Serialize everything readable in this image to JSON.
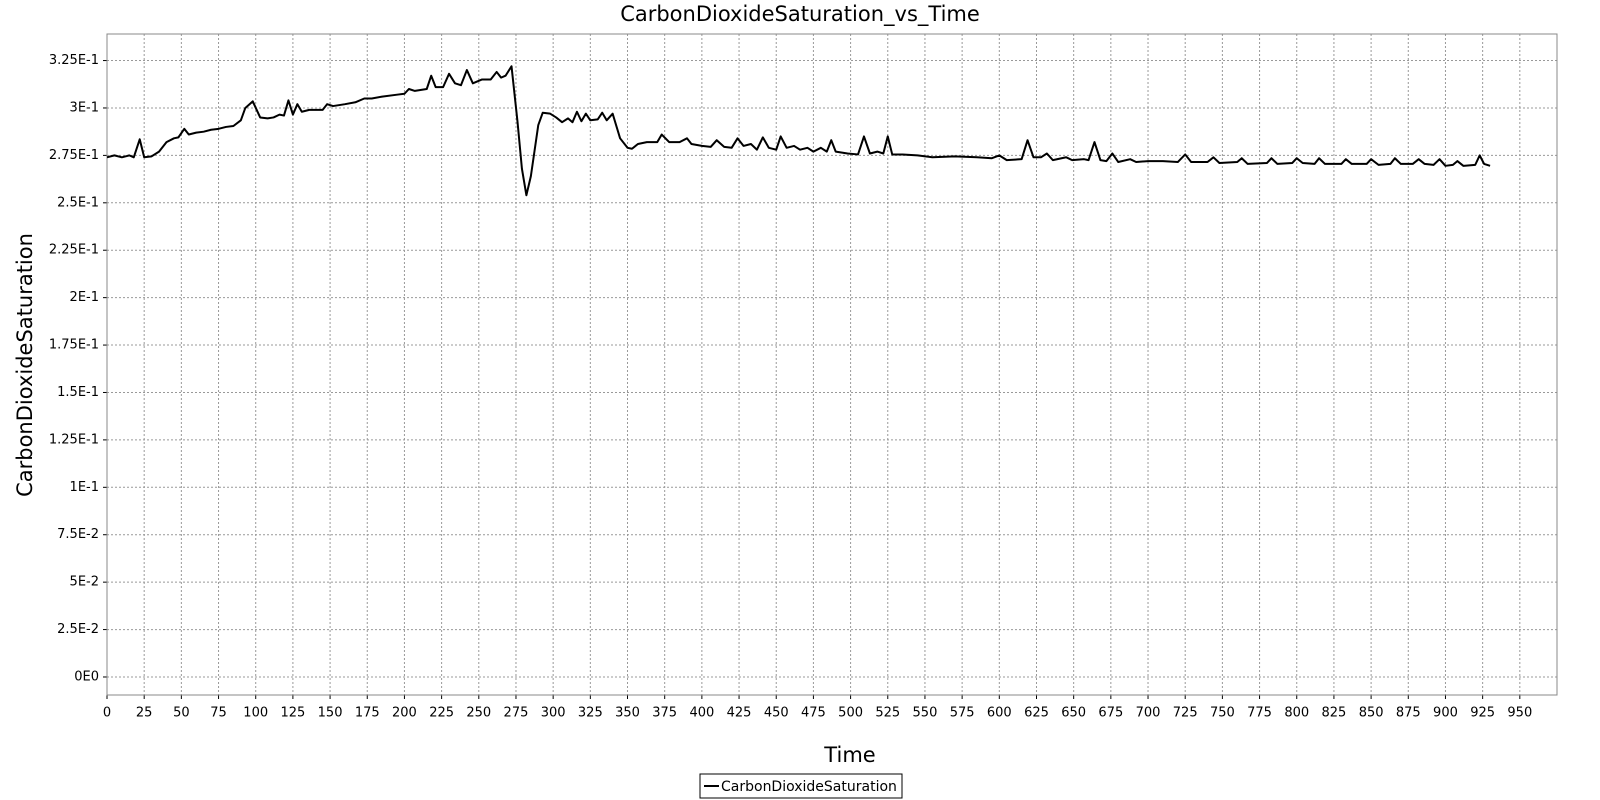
{
  "chart_data": {
    "type": "line",
    "title": "CarbonDioxideSaturation_vs_Time",
    "x_label": "Time",
    "y_label": "CarbonDioxideSaturation",
    "grid": true,
    "legend": "bottom",
    "xlim": [
      0,
      975
    ],
    "ylim": [
      -0.0095,
      0.339
    ],
    "xticks": [
      0,
      25,
      50,
      75,
      100,
      125,
      150,
      175,
      200,
      225,
      250,
      275,
      300,
      325,
      350,
      375,
      400,
      425,
      450,
      475,
      500,
      525,
      550,
      575,
      600,
      625,
      650,
      675,
      700,
      725,
      750,
      775,
      800,
      825,
      850,
      875,
      900,
      925,
      950
    ],
    "yticks": [
      {
        "value": 0,
        "label": "0E0"
      },
      {
        "value": 0.025,
        "label": "2.5E-2"
      },
      {
        "value": 0.05,
        "label": "5E-2"
      },
      {
        "value": 0.075,
        "label": "7.5E-2"
      },
      {
        "value": 0.1,
        "label": "1E-1"
      },
      {
        "value": 0.125,
        "label": "1.25E-1"
      },
      {
        "value": 0.15,
        "label": "1.5E-1"
      },
      {
        "value": 0.175,
        "label": "1.75E-1"
      },
      {
        "value": 0.2,
        "label": "2E-1"
      },
      {
        "value": 0.225,
        "label": "2.25E-1"
      },
      {
        "value": 0.25,
        "label": "2.5E-1"
      },
      {
        "value": 0.275,
        "label": "2.75E-1"
      },
      {
        "value": 0.3,
        "label": "3E-1"
      },
      {
        "value": 0.325,
        "label": "3.25E-1"
      }
    ],
    "x": [
      0,
      5,
      10,
      15,
      18,
      22,
      25,
      30,
      35,
      40,
      45,
      48,
      52,
      55,
      60,
      65,
      70,
      75,
      80,
      85,
      90,
      93,
      98,
      103,
      108,
      112,
      116,
      119,
      122,
      125,
      128,
      131,
      136,
      145,
      148,
      152,
      160,
      167,
      173,
      178,
      185,
      195,
      200,
      203,
      207,
      215,
      218,
      221,
      226,
      230,
      234,
      238,
      242,
      246,
      252,
      258,
      262,
      265,
      268,
      272,
      276,
      279,
      282,
      285,
      290,
      293,
      298,
      302,
      306,
      310,
      313,
      316,
      319,
      322,
      325,
      330,
      333,
      336,
      340,
      345,
      350,
      353,
      357,
      363,
      370,
      373,
      378,
      385,
      390,
      393,
      400,
      406,
      410,
      415,
      420,
      424,
      428,
      433,
      437,
      441,
      445,
      450,
      453,
      457,
      462,
      466,
      471,
      475,
      480,
      484,
      487,
      490,
      498,
      505,
      509,
      513,
      518,
      522,
      525,
      528,
      535,
      545,
      555,
      570,
      585,
      595,
      600,
      605,
      615,
      619,
      623,
      628,
      632,
      636,
      645,
      649,
      657,
      660,
      664,
      668,
      672,
      676,
      680,
      688,
      692,
      700,
      710,
      720,
      725,
      729,
      740,
      744,
      748,
      760,
      763,
      767,
      780,
      783,
      787,
      797,
      800,
      804,
      812,
      815,
      819,
      830,
      833,
      837,
      847,
      850,
      855,
      863,
      866,
      870,
      878,
      882,
      886,
      892,
      896,
      900,
      905,
      908,
      912,
      920,
      923,
      926,
      930
    ],
    "series": [
      {
        "name": "CarbonDioxideSaturation",
        "color": "#000000",
        "values": [
          0.274,
          0.275,
          0.274,
          0.275,
          0.274,
          0.2835,
          0.274,
          0.2745,
          0.277,
          0.282,
          0.284,
          0.2845,
          0.289,
          0.286,
          0.287,
          0.2875,
          0.2885,
          0.289,
          0.29,
          0.2905,
          0.2935,
          0.3,
          0.3035,
          0.295,
          0.2945,
          0.295,
          0.2965,
          0.296,
          0.304,
          0.2965,
          0.302,
          0.298,
          0.299,
          0.299,
          0.302,
          0.301,
          0.302,
          0.303,
          0.305,
          0.305,
          0.306,
          0.307,
          0.3075,
          0.31,
          0.309,
          0.31,
          0.317,
          0.311,
          0.311,
          0.318,
          0.313,
          0.312,
          0.32,
          0.313,
          0.315,
          0.315,
          0.319,
          0.316,
          0.317,
          0.322,
          0.293,
          0.268,
          0.254,
          0.264,
          0.291,
          0.2975,
          0.297,
          0.295,
          0.2925,
          0.2945,
          0.2925,
          0.298,
          0.293,
          0.297,
          0.2935,
          0.294,
          0.2975,
          0.2935,
          0.297,
          0.284,
          0.279,
          0.2785,
          0.281,
          0.282,
          0.282,
          0.286,
          0.282,
          0.282,
          0.284,
          0.281,
          0.28,
          0.2795,
          0.283,
          0.2795,
          0.279,
          0.284,
          0.28,
          0.281,
          0.278,
          0.2845,
          0.279,
          0.278,
          0.285,
          0.279,
          0.28,
          0.278,
          0.279,
          0.277,
          0.279,
          0.277,
          0.283,
          0.277,
          0.276,
          0.2755,
          0.285,
          0.276,
          0.277,
          0.276,
          0.285,
          0.2755,
          0.2755,
          0.275,
          0.274,
          0.2745,
          0.274,
          0.2735,
          0.275,
          0.2725,
          0.273,
          0.283,
          0.274,
          0.274,
          0.276,
          0.2725,
          0.274,
          0.2725,
          0.273,
          0.2725,
          0.282,
          0.2725,
          0.272,
          0.276,
          0.2715,
          0.273,
          0.2715,
          0.272,
          0.272,
          0.2715,
          0.2755,
          0.2715,
          0.2715,
          0.274,
          0.271,
          0.2715,
          0.2735,
          0.2705,
          0.271,
          0.2735,
          0.2705,
          0.271,
          0.2735,
          0.271,
          0.2705,
          0.2735,
          0.2705,
          0.2705,
          0.273,
          0.2705,
          0.2705,
          0.273,
          0.27,
          0.2705,
          0.2735,
          0.2705,
          0.2705,
          0.273,
          0.2705,
          0.27,
          0.273,
          0.2695,
          0.27,
          0.272,
          0.2695,
          0.27,
          0.275,
          0.2705,
          0.2695
        ]
      }
    ]
  }
}
